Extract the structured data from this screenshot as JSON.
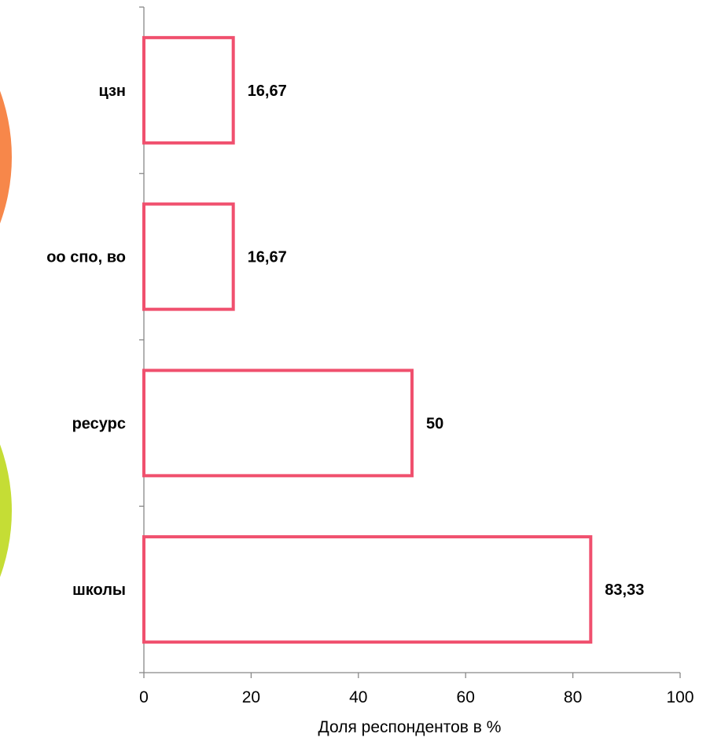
{
  "chart_data": {
    "type": "bar",
    "orientation": "horizontal",
    "categories": [
      "цзн",
      "оо спо, во",
      "ресурс",
      "школы"
    ],
    "values": [
      16.67,
      16.67,
      50,
      83.33
    ],
    "value_labels": [
      "16,67",
      "16,67",
      "50",
      "83,33"
    ],
    "xlabel": "Доля респондентов в %",
    "ylabel": "",
    "xlim": [
      0,
      100
    ],
    "xticks": [
      0,
      20,
      40,
      60,
      80,
      100
    ],
    "grid": false,
    "legend": "none",
    "bar_style": "outline",
    "colors": {
      "bar_outline": "#F0506E",
      "bar_fill": "#ffffff",
      "axis": "#888888"
    }
  },
  "decor": {
    "left_circles": [
      {
        "name": "orange-circle",
        "color": "#F7874A"
      },
      {
        "name": "lime-circle",
        "color": "#C5DD35"
      }
    ]
  }
}
